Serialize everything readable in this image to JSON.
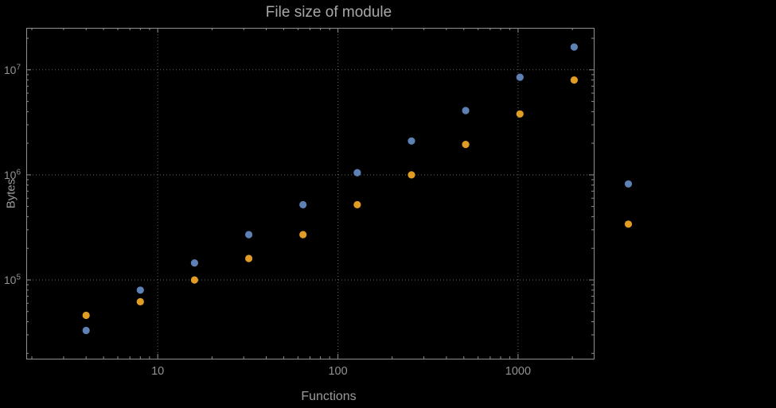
{
  "chart_data": {
    "type": "scatter",
    "title": "File size of module",
    "xlabel": "Functions",
    "ylabel": "Bytes",
    "x_scale": "log",
    "y_scale": "log",
    "grid": true,
    "legend": "none",
    "x": [
      4,
      8,
      16,
      32,
      64,
      128,
      256,
      512,
      1024,
      2048,
      4096
    ],
    "series": [
      {
        "name": "blue",
        "color": "#5e81b5",
        "values": [
          33000,
          80000,
          145000,
          270000,
          520000,
          1050000,
          2100000,
          4100000,
          8500000,
          16500000,
          820000
        ]
      },
      {
        "name": "orange",
        "color": "#e19c24",
        "values": [
          46000,
          62000,
          100000,
          160000,
          270000,
          520000,
          1000000,
          1950000,
          3800000,
          8000000,
          340000
        ]
      }
    ],
    "x_ticks": [
      {
        "value": 10,
        "label": "10"
      },
      {
        "value": 100,
        "label": "100"
      },
      {
        "value": 1000,
        "label": "1000"
      }
    ],
    "y_ticks": [
      {
        "value": 100000,
        "base": "10",
        "exp": "5"
      },
      {
        "value": 1000000,
        "base": "10",
        "exp": "6"
      },
      {
        "value": 10000000,
        "base": "10",
        "exp": "7"
      }
    ],
    "x_range_log": [
      0.27,
      3.42
    ],
    "y_range_log": [
      4.25,
      7.4
    ],
    "colors": {
      "background": "#000000",
      "frame": "#8f8f8f",
      "grid": "#636363",
      "text": "#9b9b9b"
    }
  }
}
